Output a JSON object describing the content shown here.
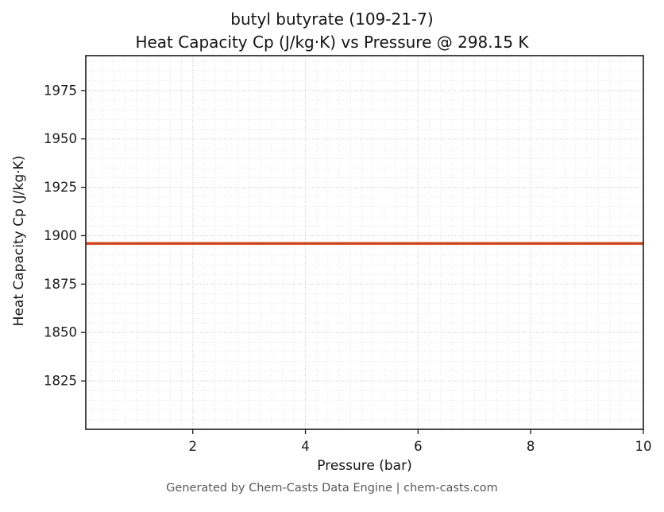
{
  "title": {
    "line1": "butyl butyrate (109-21-7)",
    "line2": "Heat Capacity Cp (J/kg·K) vs Pressure @ 298.15 K"
  },
  "footer": {
    "text": "Generated by Chem-Casts Data Engine | chem-casts.com"
  },
  "chart_data": {
    "type": "line",
    "title": "butyl butyrate (109-21-7)\nHeat Capacity Cp (J/kg·K) vs Pressure @ 298.15 K",
    "xlabel": "Pressure (bar)",
    "ylabel": "Heat Capacity Cp (J/kg·K)",
    "x": [
      0.1,
      10
    ],
    "series": [
      {
        "name": "Cp",
        "values": [
          1896,
          1896
        ]
      }
    ],
    "xlim": [
      0.1,
      10
    ],
    "ylim": [
      1800,
      1993
    ],
    "x_ticks": [
      2,
      4,
      6,
      8,
      10
    ],
    "y_ticks": [
      1825,
      1850,
      1875,
      1900,
      1925,
      1950,
      1975
    ],
    "x_minor_step": 0.2,
    "y_minor_step": 5,
    "grid": true,
    "legend": "none",
    "line_color": "#d0431f",
    "grid_minor_color": "#dedede",
    "grid_major_color": "#c8c8c8",
    "frame_color": "#1a1a1a"
  }
}
